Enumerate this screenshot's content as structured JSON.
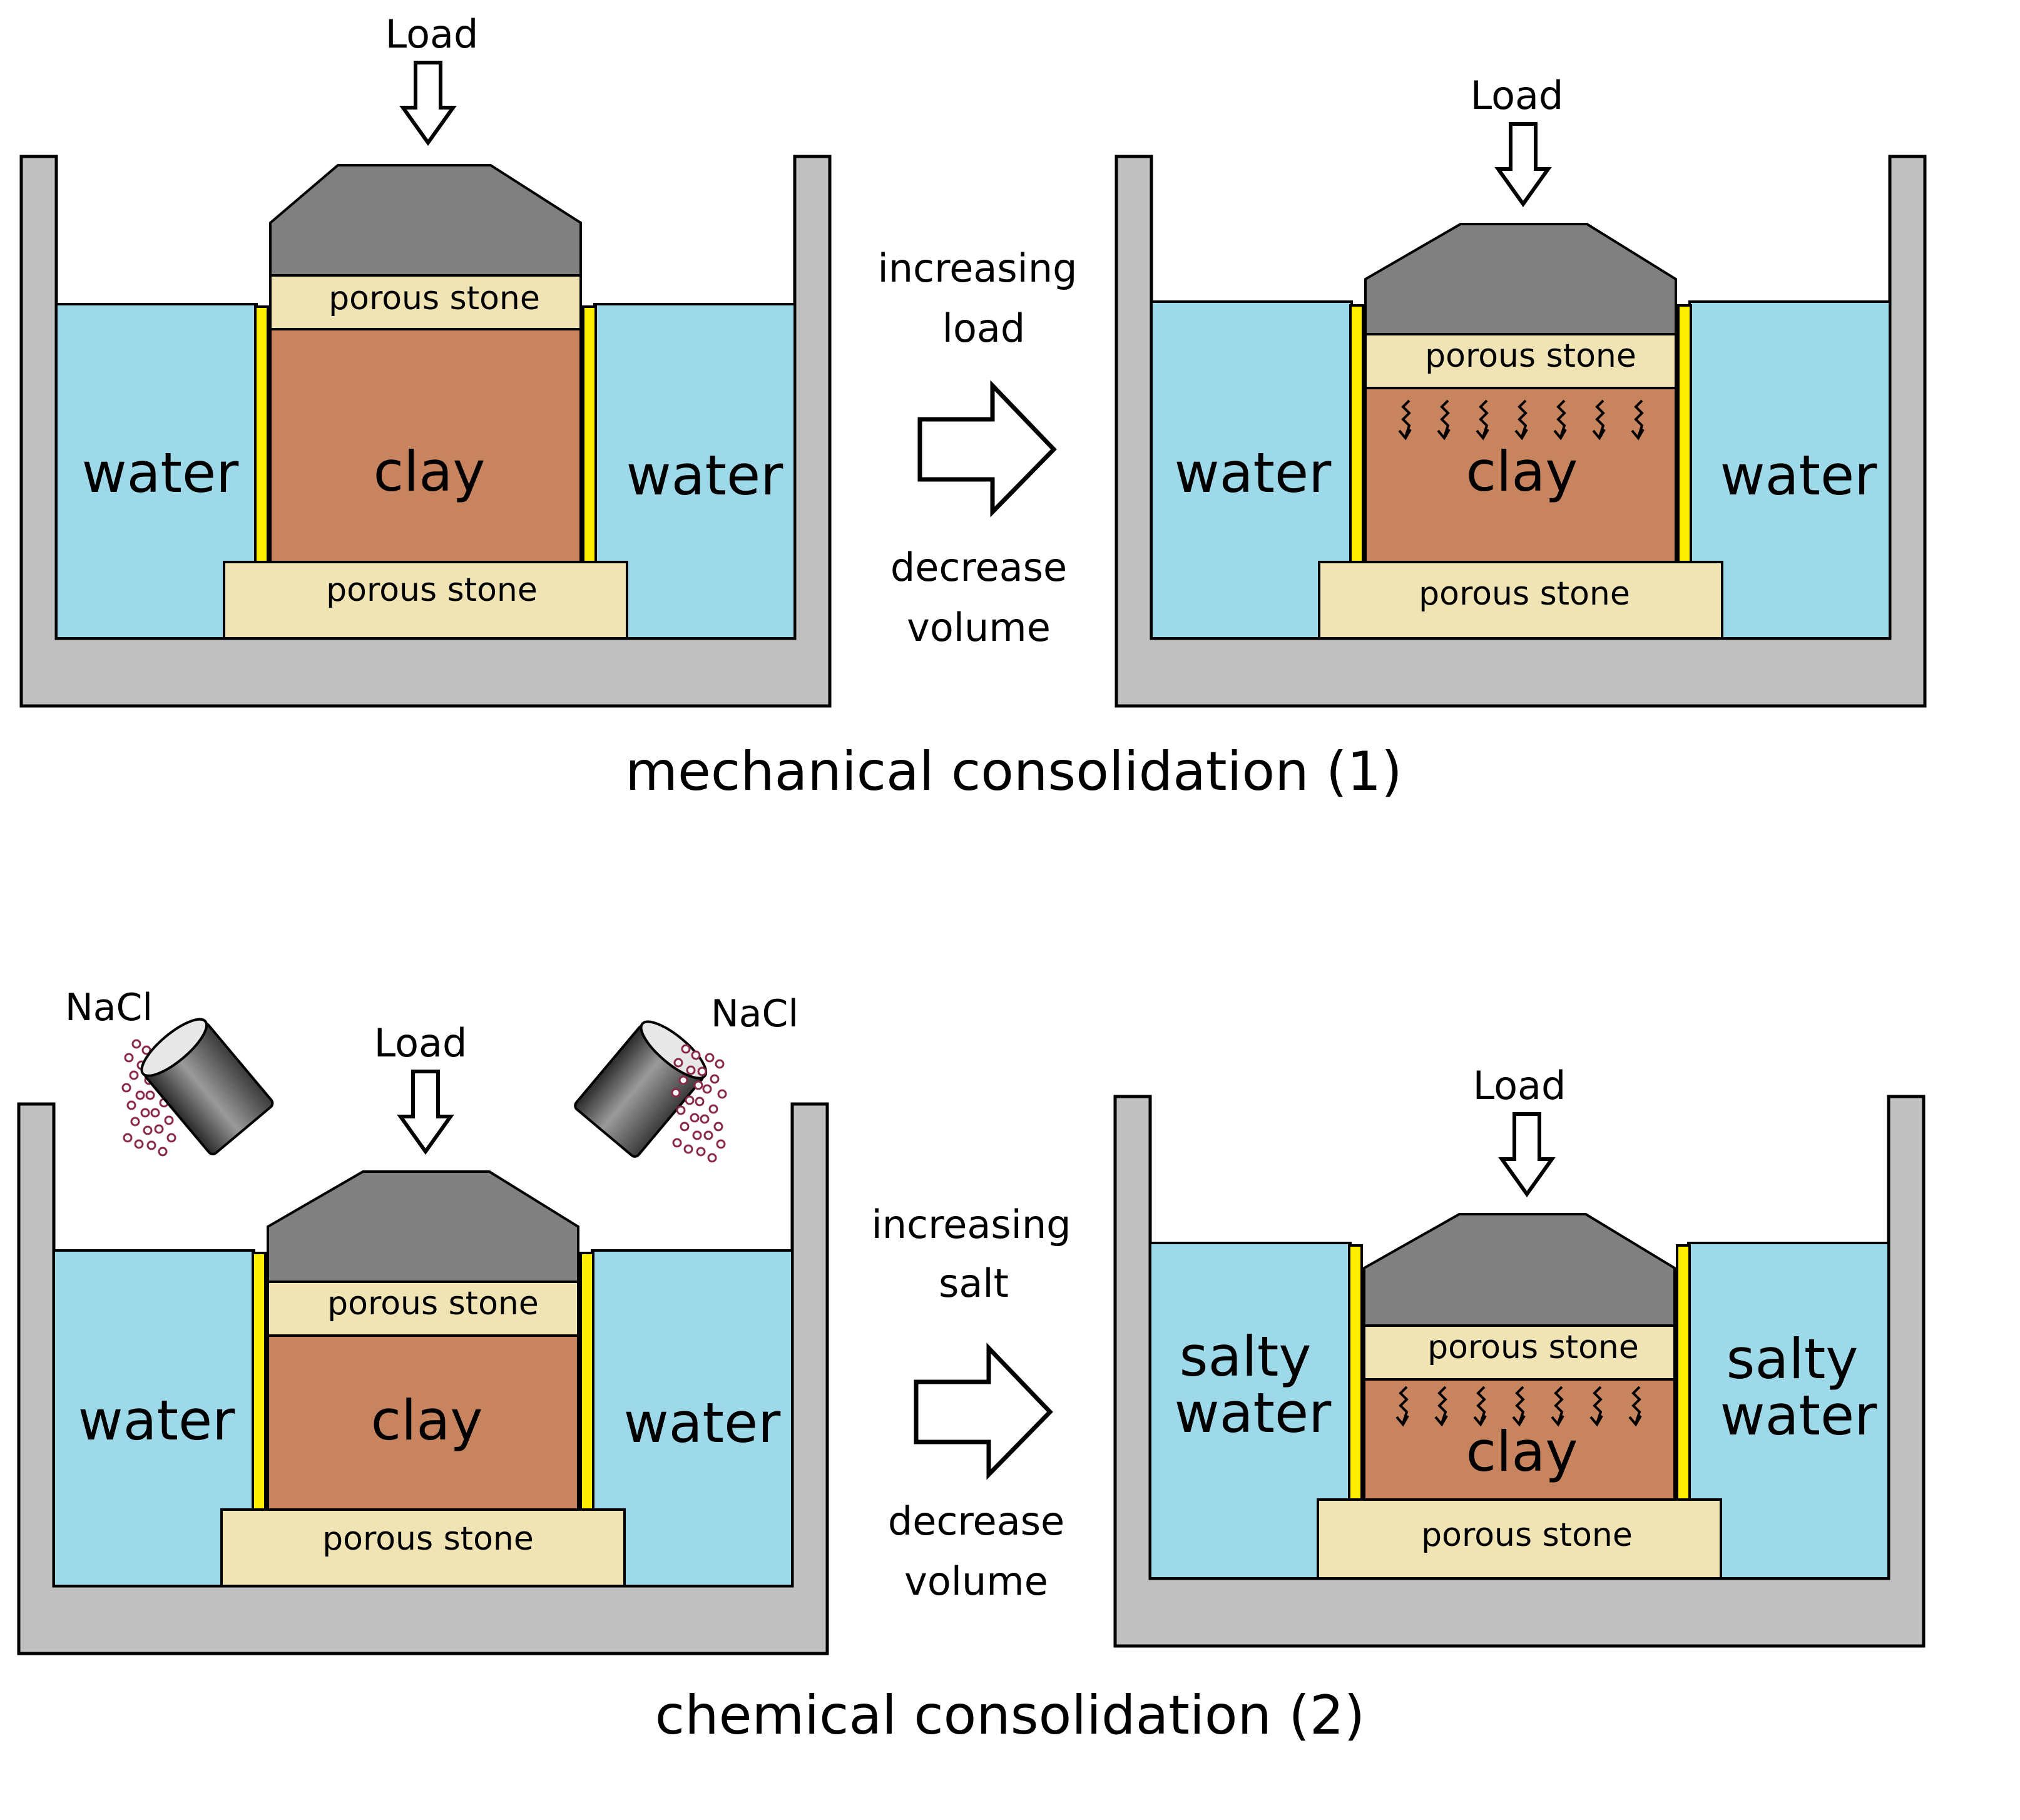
{
  "colors": {
    "water": "#9dd9e8",
    "clay": "#c8845f",
    "porous_stone": "#f0e4b4",
    "cap": "#808080",
    "tank": "#c0c0c0",
    "ring": "#ffee00",
    "salt": "#8a2a4a"
  },
  "panels": [
    {
      "load_label": "Load",
      "left_liquid": "water",
      "right_liquid": "water",
      "clay_label": "clay",
      "top_stone_label": "porous stone",
      "bottom_stone_label": "porous stone"
    },
    {
      "load_label": "Load",
      "left_liquid": "water",
      "right_liquid": "water",
      "clay_label": "clay",
      "top_stone_label": "porous stone",
      "bottom_stone_label": "porous stone"
    },
    {
      "load_label": "Load",
      "left_liquid": "water",
      "right_liquid": "water",
      "clay_label": "clay",
      "top_stone_label": "porous stone",
      "bottom_stone_label": "porous stone",
      "salt_left_label": "NaCl",
      "salt_right_label": "NaCl"
    },
    {
      "load_label": "Load",
      "left_liquid_line1": "salty",
      "left_liquid_line2": "water",
      "right_liquid_line1": "salty",
      "right_liquid_line2": "water",
      "clay_label": "clay",
      "top_stone_label": "porous stone",
      "bottom_stone_label": "porous stone"
    }
  ],
  "arrows": [
    {
      "line1": "increasing",
      "line2": "load",
      "line3": "decrease",
      "line4": "volume"
    },
    {
      "line1": "increasing",
      "line2": "salt",
      "line3": "decrease",
      "line4": "volume"
    }
  ],
  "captions": {
    "mechanical": "mechanical consolidation (1)",
    "chemical": "chemical consolidation (2)"
  }
}
